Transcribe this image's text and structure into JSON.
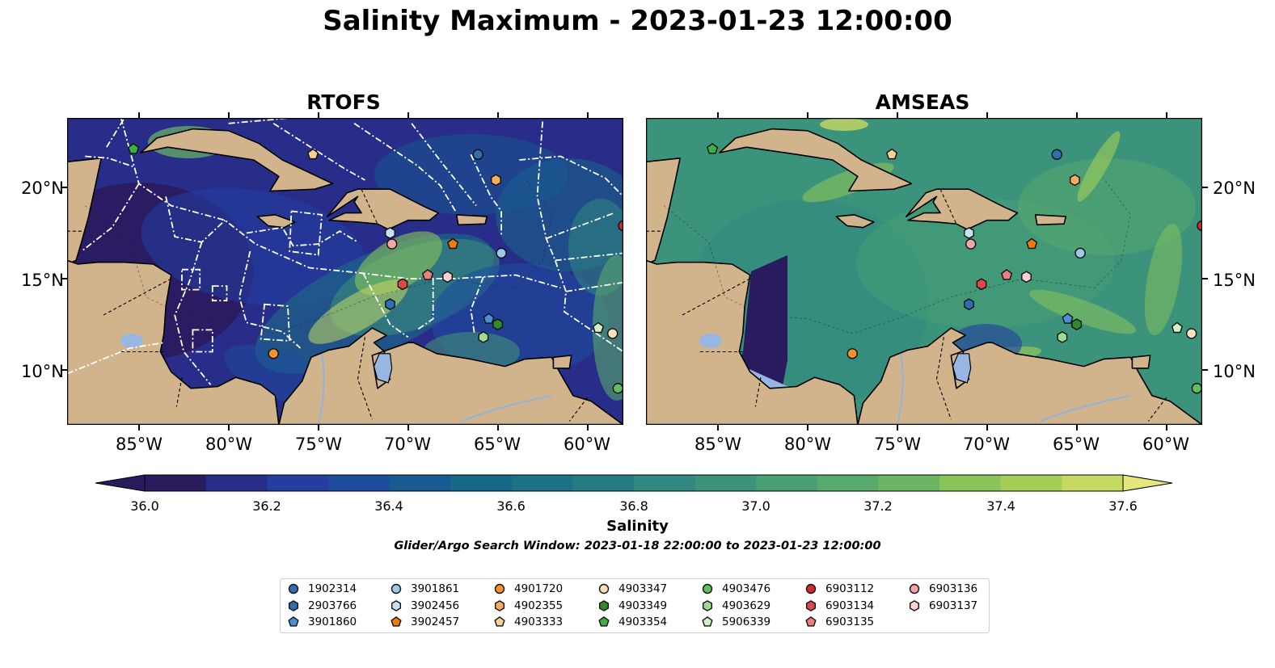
{
  "title": "Salinity Maximum - 2023-01-23 12:00:00",
  "panels": [
    {
      "title": "RTOFS",
      "style": "rtofs"
    },
    {
      "title": "AMSEAS",
      "style": "amseas"
    }
  ],
  "axes": {
    "x_ticks": [
      "85°W",
      "80°W",
      "75°W",
      "70°W",
      "65°W",
      "60°W"
    ],
    "x_tick_values": [
      -85,
      -80,
      -75,
      -70,
      -65,
      -60
    ],
    "y_ticks": [
      "20°N",
      "15°N",
      "10°N"
    ],
    "y_tick_values": [
      20,
      15,
      10
    ],
    "lon_range": [
      -89,
      -58
    ],
    "lat_range": [
      7,
      23.8
    ]
  },
  "colorbar": {
    "label": "Salinity",
    "ticks": [
      "36.0",
      "36.2",
      "36.4",
      "36.6",
      "36.8",
      "37.0",
      "37.2",
      "37.4",
      "37.6"
    ],
    "range": [
      36.0,
      37.6
    ],
    "extend": "both",
    "colormap": "haline",
    "colors": [
      "#2a1a5e",
      "#282d8a",
      "#233e9e",
      "#1c4d9c",
      "#185a92",
      "#17678b",
      "#1b7286",
      "#257d83",
      "#308880",
      "#3c937c",
      "#48a074",
      "#57aa6c",
      "#6cb663",
      "#88c45a",
      "#a4ce57",
      "#c6da63",
      "#e5e77c"
    ]
  },
  "search_window": "Glider/Argo Search Window: 2023-01-18 22:00:00 to 2023-01-23 12:00:00",
  "legend": {
    "items": [
      {
        "label": "1902314",
        "marker": "circle",
        "color": "#2f6fb1",
        "lon": -66.1,
        "lat": 21.8
      },
      {
        "label": "2903766",
        "marker": "hexagon",
        "color": "#2f6fb1",
        "lon": -71.0,
        "lat": 13.6
      },
      {
        "label": "3901860",
        "marker": "pentagon",
        "color": "#4a90d6",
        "lon": -65.5,
        "lat": 12.8
      },
      {
        "label": "3901861",
        "marker": "circle",
        "color": "#9ecae8",
        "lon": -64.8,
        "lat": 16.4
      },
      {
        "label": "3902456",
        "marker": "hexagon",
        "color": "#c6e0f4",
        "lon": -71.0,
        "lat": 17.5
      },
      {
        "label": "3902457",
        "marker": "pentagon",
        "color": "#f07a10",
        "lon": -67.5,
        "lat": 16.9
      },
      {
        "label": "4901720",
        "marker": "circle",
        "color": "#f5922f",
        "lon": -77.5,
        "lat": 10.9
      },
      {
        "label": "4902355",
        "marker": "hexagon",
        "color": "#fbab5d",
        "lon": -65.1,
        "lat": 20.4
      },
      {
        "label": "4903333",
        "marker": "pentagon",
        "color": "#fdcf94",
        "lon": -75.3,
        "lat": 21.8
      },
      {
        "label": "4903347",
        "marker": "circle",
        "color": "#fddfbe",
        "lon": -58.6,
        "lat": 12.0
      },
      {
        "label": "4903349",
        "marker": "hexagon",
        "color": "#2e8b2e",
        "lon": -65.0,
        "lat": 12.5
      },
      {
        "label": "4903354",
        "marker": "pentagon",
        "color": "#3cb043",
        "lon": -85.3,
        "lat": 22.1
      },
      {
        "label": "4903476",
        "marker": "circle",
        "color": "#5fbf5f",
        "lon": -58.3,
        "lat": 9.0
      },
      {
        "label": "4903629",
        "marker": "hexagon",
        "color": "#9fdc8f",
        "lon": -65.8,
        "lat": 11.8
      },
      {
        "label": "5906339",
        "marker": "pentagon",
        "color": "#d1f2c5",
        "lon": -59.4,
        "lat": 12.3
      },
      {
        "label": "6903112",
        "marker": "circle",
        "color": "#d62a2a",
        "lon": -58.0,
        "lat": 17.9
      },
      {
        "label": "6903134",
        "marker": "hexagon",
        "color": "#e04848",
        "lon": -70.3,
        "lat": 14.7
      },
      {
        "label": "6903135",
        "marker": "pentagon",
        "color": "#ec7f7f",
        "lon": -68.9,
        "lat": 15.2
      },
      {
        "label": "6903136",
        "marker": "circle",
        "color": "#f5a5a5",
        "lon": -70.9,
        "lat": 16.9
      },
      {
        "label": "6903137",
        "marker": "hexagon",
        "color": "#fcd0d0",
        "lon": -67.8,
        "lat": 15.1
      }
    ]
  }
}
